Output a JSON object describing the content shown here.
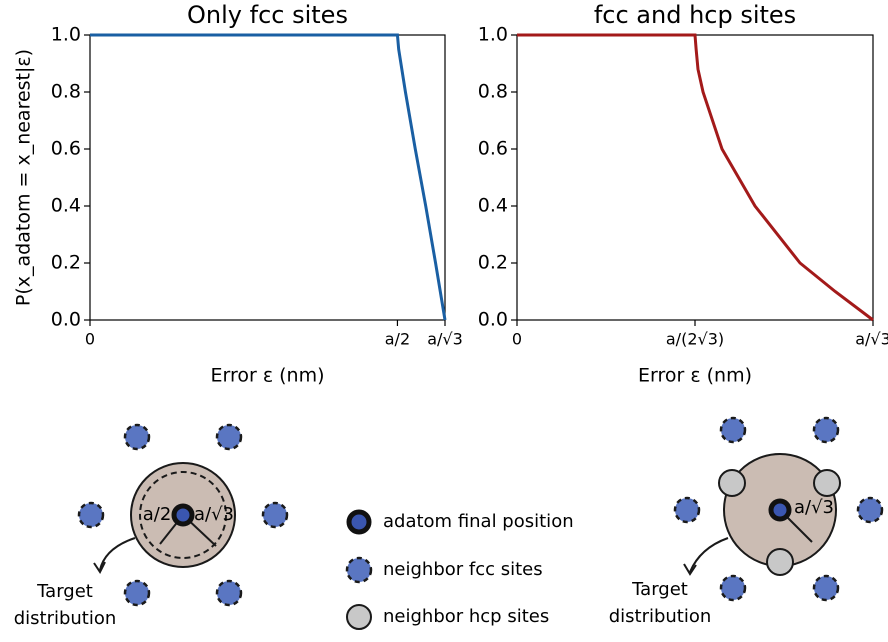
{
  "chart_data": [
    {
      "type": "line",
      "title": "Only fcc sites",
      "xlabel": "Error ε (nm)",
      "ylabel": "P(x_adatom = x_nearest|ε)",
      "x": [
        0,
        0.5,
        0.502,
        0.513,
        0.529,
        0.546,
        0.562,
        0.57735
      ],
      "values": [
        1,
        1,
        0.95,
        0.8,
        0.6,
        0.4,
        0.2,
        0
      ],
      "color": "#1a5fa3",
      "xlim": [
        0,
        0.57735
      ],
      "ylim": [
        0,
        1
      ],
      "xticks": [
        0,
        {
          "value": 0.5,
          "label": "a/2"
        },
        {
          "value": 0.57735,
          "label": "a/√3"
        }
      ],
      "yticks": [
        {
          "value": 0,
          "label": "0.0"
        },
        {
          "value": 0.2,
          "label": "0.2"
        },
        {
          "value": 0.4,
          "label": "0.4"
        },
        {
          "value": 0.6,
          "label": "0.6"
        },
        {
          "value": 0.8,
          "label": "0.8"
        },
        {
          "value": 1,
          "label": "1.0"
        }
      ]
    },
    {
      "type": "line",
      "title": "fcc and hcp sites",
      "xlabel": "Error ε (nm)",
      "x": [
        0,
        0.288675,
        0.2905,
        0.2935,
        0.3017,
        0.3325,
        0.386,
        0.459,
        0.516,
        0.57735
      ],
      "values": [
        1,
        1,
        0.95,
        0.88,
        0.8,
        0.6,
        0.4,
        0.2,
        0.1,
        0
      ],
      "color": "#a31a1a",
      "xlim": [
        0,
        0.57735
      ],
      "ylim": [
        0,
        1
      ],
      "xticks": [
        0,
        {
          "value": 0.288675,
          "label": "a/(2√3)"
        },
        {
          "value": 0.57735,
          "label": "a/√3"
        }
      ],
      "yticks": [
        {
          "value": 0,
          "label": "0.0"
        },
        {
          "value": 0.2,
          "label": "0.2"
        },
        {
          "value": 0.4,
          "label": "0.4"
        },
        {
          "value": 0.6,
          "label": "0.6"
        },
        {
          "value": 0.8,
          "label": "0.8"
        },
        {
          "value": 1,
          "label": "1.0"
        }
      ]
    }
  ],
  "legend": [
    "adatom final position",
    "neighbor fcc sites",
    "neighbor hcp sites"
  ],
  "diagrams": [
    {
      "labels": [
        "a/2",
        "a/√3"
      ],
      "caption": [
        "Target",
        "distribution"
      ]
    },
    {
      "labels": [
        "a/√3"
      ],
      "caption": [
        "Target",
        "distribution"
      ]
    }
  ]
}
